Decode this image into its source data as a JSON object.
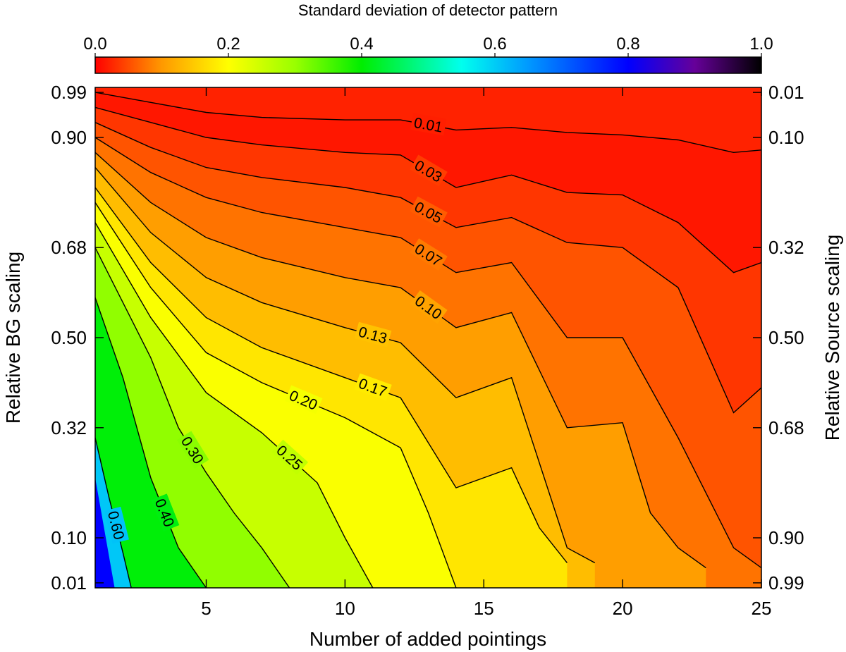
{
  "chart_data": {
    "type": "heatmap",
    "subtype": "filled-contour",
    "colorbar": {
      "title": "Standard deviation of detector pattern",
      "range": [
        0.0,
        1.0
      ],
      "ticks": [
        "0.0",
        "0.2",
        "0.4",
        "0.6",
        "0.8",
        "1.0"
      ],
      "stops": [
        [
          0.0,
          "#ff0000"
        ],
        [
          0.1,
          "#ff9900"
        ],
        [
          0.2,
          "#ffff00"
        ],
        [
          0.3,
          "#99ff00"
        ],
        [
          0.4,
          "#00ee00"
        ],
        [
          0.55,
          "#00ffee"
        ],
        [
          0.65,
          "#0099ff"
        ],
        [
          0.8,
          "#0000ff"
        ],
        [
          0.9,
          "#660099"
        ],
        [
          1.0,
          "#000000"
        ]
      ]
    },
    "xlabel": "Number of added pointings",
    "ylabel_left": "Relative BG scaling",
    "ylabel_right": "Relative Source scaling",
    "xlim": [
      1,
      25
    ],
    "ylim": [
      0,
      1
    ],
    "x_ticks": [
      "5",
      "10",
      "15",
      "20",
      "25"
    ],
    "x_tick_values": [
      5,
      10,
      15,
      20,
      25
    ],
    "y_ticks_left": [
      "0.01",
      "0.10",
      "0.32",
      "0.50",
      "0.68",
      "0.90",
      "0.99"
    ],
    "y_ticks_right": [
      "0.99",
      "0.90",
      "0.68",
      "0.50",
      "0.32",
      "0.10",
      "0.01"
    ],
    "y_tick_values": [
      0.01,
      0.1,
      0.32,
      0.5,
      0.68,
      0.9,
      0.99
    ],
    "y_tick_fractions": [
      0.01,
      0.1,
      0.32,
      0.5,
      0.68,
      0.9,
      0.99
    ],
    "contours": [
      {
        "level": "0.01",
        "points": [
          [
            1,
            0.99
          ],
          [
            3,
            0.97
          ],
          [
            5,
            0.95
          ],
          [
            7,
            0.94
          ],
          [
            10,
            0.935
          ],
          [
            12,
            0.935
          ],
          [
            14,
            0.915
          ],
          [
            16,
            0.92
          ],
          [
            18,
            0.91
          ],
          [
            20,
            0.905
          ],
          [
            22,
            0.895
          ],
          [
            24,
            0.87
          ],
          [
            25,
            0.875
          ]
        ]
      },
      {
        "level": "0.03",
        "points": [
          [
            1,
            0.96
          ],
          [
            3,
            0.93
          ],
          [
            5,
            0.9
          ],
          [
            7,
            0.885
          ],
          [
            10,
            0.87
          ],
          [
            12,
            0.865
          ],
          [
            14,
            0.8
          ],
          [
            16,
            0.825
          ],
          [
            18,
            0.79
          ],
          [
            20,
            0.785
          ],
          [
            22,
            0.73
          ],
          [
            24,
            0.63
          ],
          [
            25,
            0.65
          ]
        ]
      },
      {
        "level": "0.05",
        "points": [
          [
            1,
            0.93
          ],
          [
            3,
            0.88
          ],
          [
            5,
            0.84
          ],
          [
            7,
            0.82
          ],
          [
            10,
            0.8
          ],
          [
            12,
            0.78
          ],
          [
            14,
            0.72
          ],
          [
            16,
            0.74
          ],
          [
            18,
            0.69
          ],
          [
            20,
            0.68
          ],
          [
            22,
            0.6
          ],
          [
            24,
            0.35
          ],
          [
            25,
            0.4
          ]
        ]
      },
      {
        "level": "0.07",
        "points": [
          [
            1,
            0.9
          ],
          [
            3,
            0.83
          ],
          [
            5,
            0.78
          ],
          [
            7,
            0.75
          ],
          [
            10,
            0.72
          ],
          [
            12,
            0.7
          ],
          [
            14,
            0.63
          ],
          [
            16,
            0.65
          ],
          [
            18,
            0.5
          ],
          [
            20,
            0.5
          ],
          [
            22,
            0.3
          ],
          [
            24,
            0.08
          ],
          [
            25,
            0.04
          ]
        ]
      },
      {
        "level": "0.10",
        "points": [
          [
            1,
            0.87
          ],
          [
            3,
            0.77
          ],
          [
            5,
            0.7
          ],
          [
            7,
            0.66
          ],
          [
            10,
            0.62
          ],
          [
            12,
            0.6
          ],
          [
            14,
            0.52
          ],
          [
            16,
            0.55
          ],
          [
            18,
            0.32
          ],
          [
            20,
            0.33
          ],
          [
            21,
            0.15
          ],
          [
            22,
            0.08
          ],
          [
            23,
            0.04
          ]
        ]
      },
      {
        "level": "0.13",
        "points": [
          [
            1,
            0.84
          ],
          [
            3,
            0.71
          ],
          [
            5,
            0.62
          ],
          [
            7,
            0.57
          ],
          [
            10,
            0.52
          ],
          [
            12,
            0.49
          ],
          [
            14,
            0.38
          ],
          [
            16,
            0.42
          ],
          [
            17,
            0.25
          ],
          [
            18,
            0.08
          ],
          [
            19,
            0.05
          ]
        ]
      },
      {
        "level": "0.17",
        "points": [
          [
            1,
            0.8
          ],
          [
            3,
            0.65
          ],
          [
            5,
            0.54
          ],
          [
            7,
            0.48
          ],
          [
            10,
            0.42
          ],
          [
            12,
            0.38
          ],
          [
            14,
            0.2
          ],
          [
            16,
            0.24
          ],
          [
            17,
            0.12
          ],
          [
            18,
            0.05
          ]
        ]
      },
      {
        "level": "0.20",
        "points": [
          [
            1,
            0.77
          ],
          [
            3,
            0.6
          ],
          [
            5,
            0.47
          ],
          [
            7,
            0.41
          ],
          [
            10,
            0.34
          ],
          [
            12,
            0.28
          ],
          [
            13,
            0.15
          ],
          [
            14,
            0.0
          ]
        ]
      },
      {
        "level": "0.25",
        "points": [
          [
            1,
            0.73
          ],
          [
            3,
            0.54
          ],
          [
            5,
            0.39
          ],
          [
            7,
            0.31
          ],
          [
            9,
            0.21
          ],
          [
            10,
            0.1
          ],
          [
            11,
            0.0
          ]
        ]
      },
      {
        "level": "0.30",
        "points": [
          [
            1,
            0.68
          ],
          [
            2,
            0.57
          ],
          [
            3,
            0.46
          ],
          [
            4,
            0.32
          ],
          [
            5,
            0.23
          ],
          [
            6,
            0.15
          ],
          [
            7,
            0.08
          ],
          [
            8,
            0.0
          ]
        ]
      },
      {
        "level": "0.40",
        "points": [
          [
            1,
            0.58
          ],
          [
            2,
            0.42
          ],
          [
            3,
            0.22
          ],
          [
            4,
            0.08
          ],
          [
            5,
            0.0
          ]
        ]
      },
      {
        "level": "0.60",
        "points": [
          [
            1,
            0.3
          ],
          [
            1.5,
            0.18
          ],
          [
            2,
            0.07
          ],
          [
            2.3,
            0.0
          ]
        ]
      }
    ]
  }
}
